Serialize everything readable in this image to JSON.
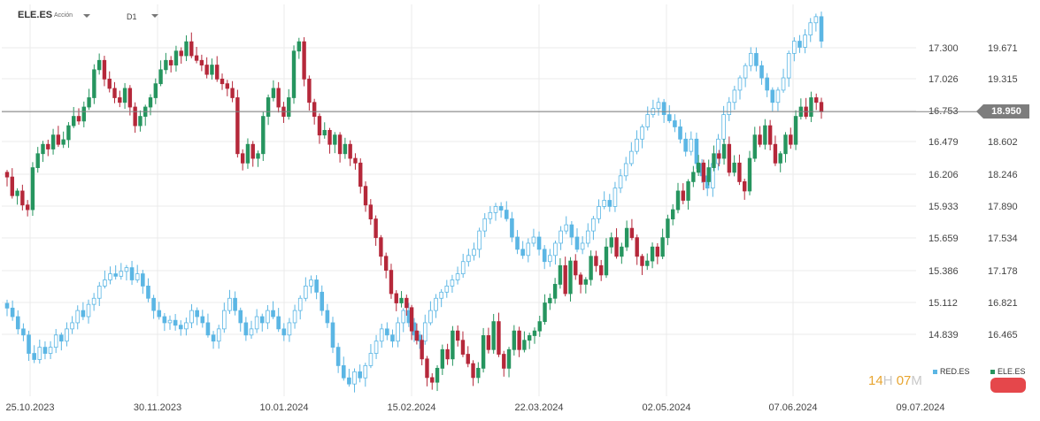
{
  "header": {
    "symbol": "ELE.ES",
    "instrument_type": "Acción",
    "timeframe": "D1"
  },
  "legend": {
    "series1": "RED.ES",
    "series2": "ELE.ES"
  },
  "last_price": "18.950",
  "timer": {
    "h": "14",
    "h_unit": "H",
    "m": "07",
    "m_unit": "M"
  },
  "colors": {
    "up": "#26955f",
    "down": "#b5283a",
    "compare": "#5bb6e4",
    "grid": "#ebebeb",
    "price_line": "#808080"
  },
  "chart_data": {
    "type": "candlestick",
    "x_ticks": [
      "25.10.2023",
      "30.11.2023",
      "10.01.2024",
      "15.02.2024",
      "22.03.2024",
      "02.05.2024",
      "07.06.2024",
      "09.07.2024"
    ],
    "y_left_ticks": [
      "17.300",
      "17.026",
      "16.753",
      "16.479",
      "16.206",
      "15.933",
      "15.659",
      "15.386",
      "15.112",
      "14.839"
    ],
    "y_right_ticks": [
      "19.671",
      "19.315",
      "18.958",
      "18.602",
      "18.246",
      "17.890",
      "17.534",
      "17.178",
      "16.821",
      "16.465"
    ],
    "y_left_range": [
      14.4,
      17.6
    ],
    "y_right_range": [
      15.9,
      20.1
    ],
    "last_value": 18.95,
    "series": [
      {
        "name": "ELE.ES",
        "axis": "right",
        "style": "candles",
        "closes": [
          18.25,
          18.05,
          18.1,
          17.95,
          17.9,
          18.35,
          18.5,
          18.6,
          18.55,
          18.7,
          18.6,
          18.65,
          18.8,
          18.9,
          18.85,
          19.0,
          19.1,
          19.4,
          19.5,
          19.3,
          19.2,
          19.1,
          19.05,
          19.2,
          19.0,
          18.8,
          18.9,
          19.0,
          19.1,
          19.25,
          19.4,
          19.5,
          19.45,
          19.6,
          19.55,
          19.7,
          19.55,
          19.5,
          19.45,
          19.35,
          19.45,
          19.3,
          19.25,
          19.2,
          19.1,
          18.5,
          18.4,
          18.6,
          18.45,
          18.5,
          18.9,
          19.1,
          19.2,
          19.0,
          18.9,
          19.1,
          19.6,
          19.7,
          19.3,
          19.05,
          18.9,
          18.7,
          18.75,
          18.6,
          18.7,
          18.5,
          18.6,
          18.45,
          18.4,
          18.15,
          17.95,
          17.8,
          17.6,
          17.4,
          17.25,
          17.0,
          16.9,
          16.95,
          16.85,
          16.6,
          16.5,
          16.3,
          16.1,
          16.05,
          16.2,
          16.4,
          16.3,
          16.6,
          16.5,
          16.35,
          16.25,
          16.1,
          16.2,
          16.55,
          16.4,
          16.7,
          16.35,
          16.2,
          16.4,
          16.6,
          16.4,
          16.5,
          16.55,
          16.6,
          16.7,
          16.9,
          16.95,
          17.1,
          17.3,
          17.0,
          17.35,
          17.2,
          17.1,
          17.15,
          17.4,
          17.3,
          17.2,
          17.5,
          17.6,
          17.4,
          17.5,
          17.7,
          17.6,
          17.4,
          17.3,
          17.35,
          17.5,
          17.4,
          17.6,
          17.8,
          17.9,
          18.1,
          18.0,
          18.2,
          18.3,
          18.4,
          18.2,
          18.35,
          18.5,
          18.45,
          18.6,
          18.3,
          18.4,
          18.2,
          18.1,
          18.45,
          18.7,
          18.6,
          18.8,
          18.6,
          18.4,
          18.5,
          18.7,
          18.6,
          18.9,
          19.0,
          18.9,
          19.1,
          19.05,
          18.95
        ]
      },
      {
        "name": "RED.ES",
        "axis": "left",
        "style": "candles-outline",
        "closes": [
          15.12,
          15.05,
          14.95,
          14.9,
          14.75,
          14.7,
          14.8,
          14.75,
          14.8,
          14.9,
          14.85,
          14.95,
          15.0,
          15.1,
          15.05,
          15.15,
          15.2,
          15.3,
          15.35,
          15.4,
          15.38,
          15.42,
          15.45,
          15.35,
          15.4,
          15.3,
          15.2,
          15.1,
          15.05,
          15.0,
          15.02,
          14.98,
          14.95,
          15.0,
          15.1,
          15.05,
          15.0,
          14.9,
          14.85,
          14.95,
          15.1,
          15.2,
          15.1,
          15.0,
          14.9,
          14.95,
          15.05,
          15.0,
          15.1,
          15.05,
          14.95,
          14.9,
          15.0,
          15.1,
          15.2,
          15.3,
          15.35,
          15.25,
          15.1,
          15.0,
          14.8,
          14.65,
          14.55,
          14.5,
          14.6,
          14.55,
          14.65,
          14.75,
          14.85,
          14.95,
          14.9,
          14.85,
          15.0,
          15.1,
          15.0,
          14.9,
          14.85,
          15.0,
          15.1,
          15.2,
          15.25,
          15.3,
          15.35,
          15.4,
          15.5,
          15.55,
          15.6,
          15.75,
          15.85,
          15.9,
          15.95,
          15.92,
          15.85,
          15.7,
          15.6,
          15.55,
          15.65,
          15.7,
          15.6,
          15.5,
          15.55,
          15.65,
          15.75,
          15.8,
          15.7,
          15.6,
          15.65,
          15.75,
          15.85,
          15.95,
          16.0,
          15.95,
          16.1,
          16.2,
          16.3,
          16.4,
          16.5,
          16.6,
          16.7,
          16.75,
          16.8,
          16.7,
          16.65,
          16.6,
          16.5,
          16.4,
          16.5,
          16.3,
          16.2,
          16.1,
          16.3,
          16.5,
          16.7,
          16.8,
          16.9,
          17.0,
          17.1,
          17.2,
          17.1,
          17.0,
          16.9,
          16.8,
          16.9,
          17.0,
          17.2,
          17.3,
          17.25,
          17.35,
          17.45,
          17.5,
          17.3
        ]
      }
    ]
  }
}
